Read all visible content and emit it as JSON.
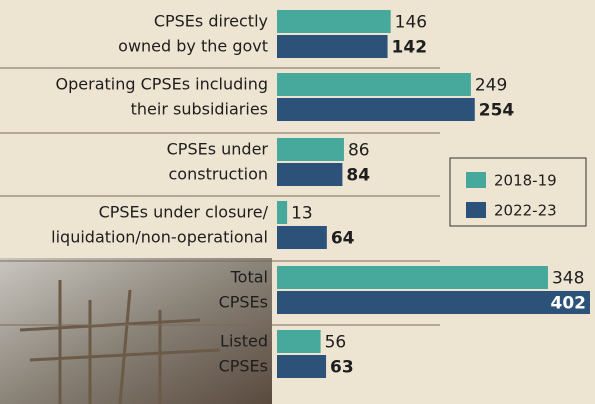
{
  "chart_data": {
    "type": "bar",
    "orientation": "horizontal",
    "categories": [
      [
        "CPSEs directly",
        "owned by the govt"
      ],
      [
        "Operating CPSEs including",
        "their subsidiaries"
      ],
      [
        "CPSEs under",
        "construction"
      ],
      [
        "CPSEs under closure/",
        "liquidation/non-operational"
      ],
      [
        "Total",
        "CPSEs"
      ],
      [
        "Listed",
        "CPSEs"
      ]
    ],
    "series": [
      {
        "name": "2018-19",
        "color": "#47a99b",
        "values": [
          146,
          249,
          86,
          13,
          348,
          56
        ]
      },
      {
        "name": "2022-23",
        "color": "#2d5279",
        "values": [
          142,
          254,
          84,
          64,
          402,
          63
        ]
      }
    ],
    "legend": "right"
  }
}
